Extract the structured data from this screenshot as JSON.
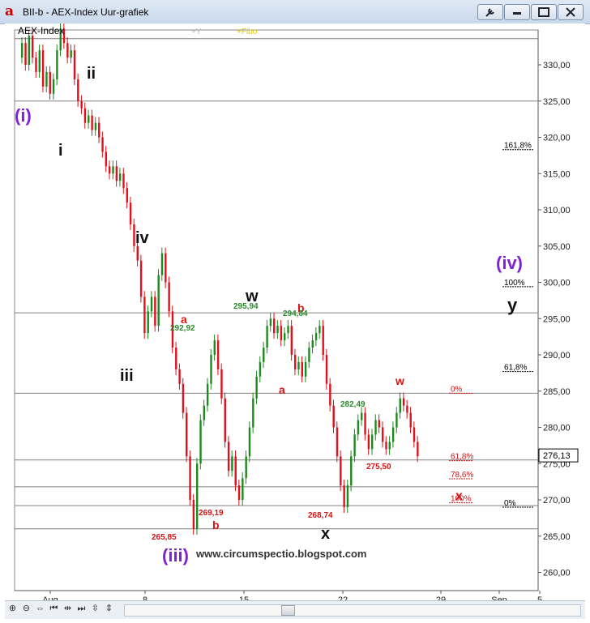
{
  "window": {
    "title": "BII-b - AEX-Index Uur-grafiek",
    "app_icon_glyph": "a",
    "buttons": [
      "wrench-icon",
      "minimize-icon",
      "restore-icon",
      "close-icon"
    ]
  },
  "chart_header": {
    "instrument": "AEX-Index",
    "overlay_labels": [
      "+Y",
      "+Fibo"
    ]
  },
  "colors": {
    "up": "#1d8a1d",
    "down": "#e0101c",
    "wave_primary": "#7f22d6",
    "wave_black": "#111111",
    "label_red": "#d41515",
    "label_green": "#2a8a2a"
  },
  "chart_data": {
    "type": "candlestick",
    "y_axis": {
      "ticks": [
        "330,00",
        "325,00",
        "320,00",
        "315,00",
        "310,00",
        "305,00",
        "300,00",
        "295,00",
        "290,00",
        "285,00",
        "280,00",
        "275,00",
        "270,00",
        "265,00",
        "260,00"
      ],
      "range": [
        258,
        335
      ]
    },
    "x_axis": {
      "labels": [
        "Aug",
        "8",
        "15",
        "22",
        "29",
        "Sep",
        "5"
      ]
    },
    "last_price": "276,13",
    "horizontal_lines": [
      333.6,
      325,
      295.8,
      284.7,
      275.5,
      271.8,
      269.2,
      266
    ],
    "series": [
      {
        "name": "",
        "values": [
          [
            331,
            333
          ],
          [
            333,
            330
          ],
          [
            330,
            334
          ],
          [
            334,
            331
          ],
          [
            331,
            329
          ],
          [
            329,
            332
          ],
          [
            332,
            327
          ],
          [
            327,
            329
          ],
          [
            329,
            326
          ],
          [
            326,
            328
          ],
          [
            328,
            332
          ],
          [
            332,
            335
          ],
          [
            335,
            333
          ],
          [
            333,
            331
          ],
          [
            331,
            332
          ],
          [
            332,
            328
          ],
          [
            328,
            325
          ],
          [
            325,
            324
          ],
          [
            324,
            322
          ],
          [
            322,
            323
          ],
          [
            323,
            321
          ],
          [
            321,
            322
          ],
          [
            322,
            320
          ],
          [
            320,
            318
          ],
          [
            318,
            316
          ],
          [
            316,
            315
          ],
          [
            315,
            316
          ],
          [
            316,
            314
          ],
          [
            314,
            315
          ],
          [
            315,
            313
          ],
          [
            313,
            311
          ],
          [
            311,
            308
          ],
          [
            308,
            305
          ],
          [
            305,
            303
          ],
          [
            303,
            298
          ],
          [
            298,
            293
          ],
          [
            293,
            296
          ],
          [
            296,
            298
          ],
          [
            298,
            294
          ],
          [
            294,
            301
          ],
          [
            301,
            304
          ],
          [
            304,
            300
          ],
          [
            300,
            296
          ],
          [
            296,
            291
          ],
          [
            291,
            288
          ],
          [
            288,
            286
          ],
          [
            286,
            282
          ],
          [
            282,
            276
          ],
          [
            276,
            270
          ],
          [
            270,
            266
          ],
          [
            266,
            275
          ],
          [
            275,
            281
          ],
          [
            281,
            283
          ],
          [
            283,
            286
          ],
          [
            286,
            290
          ],
          [
            290,
            292
          ],
          [
            292,
            288
          ],
          [
            288,
            284
          ],
          [
            284,
            278
          ],
          [
            278,
            274
          ],
          [
            274,
            276
          ],
          [
            276,
            272
          ],
          [
            272,
            270
          ],
          [
            270,
            273
          ],
          [
            273,
            276
          ],
          [
            276,
            280
          ],
          [
            280,
            284
          ],
          [
            284,
            287
          ],
          [
            287,
            289
          ],
          [
            289,
            291
          ],
          [
            291,
            294
          ],
          [
            294,
            295
          ],
          [
            295,
            293
          ],
          [
            293,
            294
          ],
          [
            294,
            292
          ],
          [
            292,
            293
          ],
          [
            293,
            294
          ],
          [
            294,
            290
          ],
          [
            290,
            288
          ],
          [
            288,
            289
          ],
          [
            289,
            287
          ],
          [
            287,
            289
          ],
          [
            289,
            291
          ],
          [
            291,
            292
          ],
          [
            292,
            293
          ],
          [
            293,
            294
          ],
          [
            294,
            290
          ],
          [
            290,
            286
          ],
          [
            286,
            283
          ],
          [
            283,
            280
          ],
          [
            280,
            276
          ],
          [
            276,
            272
          ],
          [
            272,
            269
          ],
          [
            269,
            272
          ],
          [
            272,
            276
          ],
          [
            276,
            279
          ],
          [
            279,
            281
          ],
          [
            281,
            282
          ],
          [
            282,
            279
          ],
          [
            279,
            277
          ],
          [
            277,
            279
          ],
          [
            279,
            281
          ],
          [
            281,
            280
          ],
          [
            280,
            278
          ],
          [
            278,
            277
          ],
          [
            277,
            278
          ],
          [
            278,
            280
          ],
          [
            280,
            282
          ],
          [
            282,
            284
          ],
          [
            284,
            283
          ],
          [
            283,
            282
          ],
          [
            282,
            280
          ],
          [
            280,
            278
          ],
          [
            278,
            276
          ]
        ]
      }
    ]
  },
  "fibo_levels": {
    "black": [
      {
        "label": "161,8%",
        "value": 318.3
      },
      {
        "label": "100%",
        "value": 299.4
      },
      {
        "label": "61,8%",
        "value": 287.7
      },
      {
        "label": "0%",
        "value": 269.0
      }
    ],
    "red": [
      {
        "label": "0%",
        "value": 284.7
      },
      {
        "label": "61,8%",
        "value": 275.4
      },
      {
        "label": "78,6%",
        "value": 272.9
      },
      {
        "label": "100%",
        "value": 269.6
      }
    ]
  },
  "wave_labels": {
    "i_primary": "(i)",
    "ii": "ii",
    "i": "i",
    "iv": "iv",
    "iii": "iii",
    "w_black": "w",
    "iii_primary": "(iii)",
    "iv_primary": "(iv)",
    "y": "y",
    "x_black": "x",
    "a1": "a",
    "b1": "b",
    "a2": "a",
    "b2": "b",
    "w_red": "w",
    "x_red": "x"
  },
  "price_labels": {
    "p292": "292,92",
    "p295": "295,94",
    "p294": "294,84",
    "p282": "282,49",
    "p275": "275,50",
    "p269": "269,19",
    "p268": "268,74",
    "p265": "265,85"
  },
  "watermark": "www.circumspectio.blogspot.com"
}
